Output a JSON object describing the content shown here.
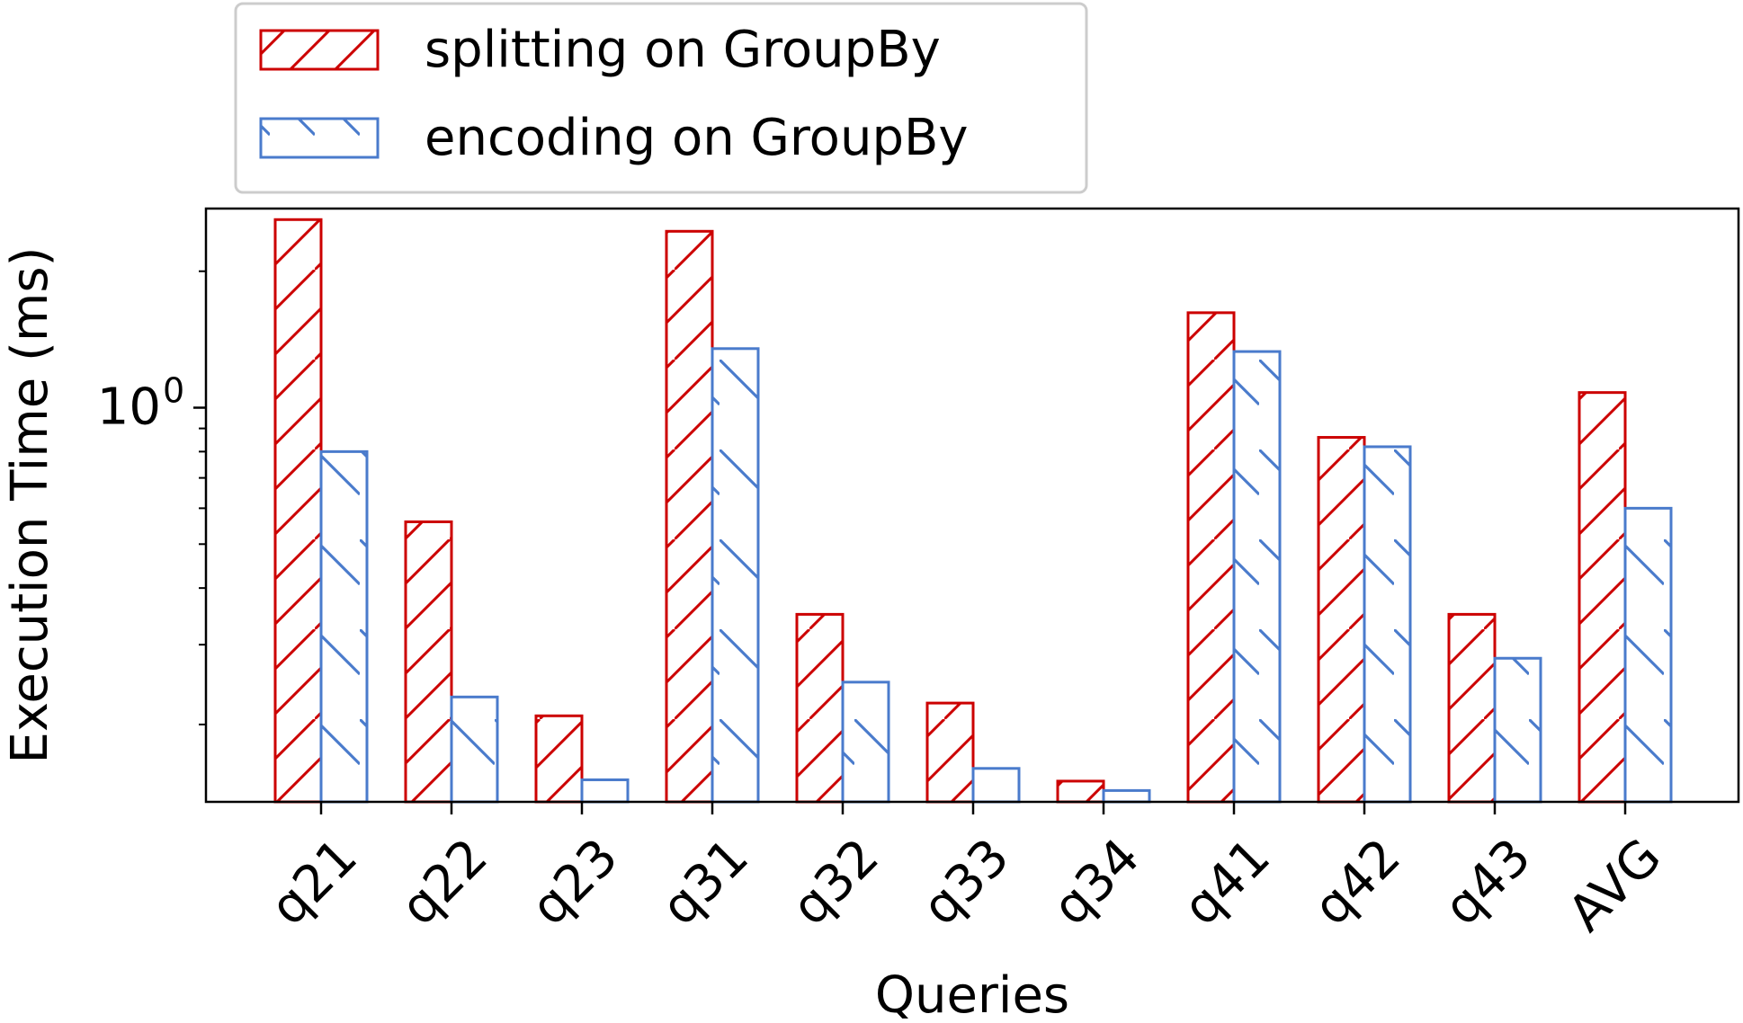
{
  "chart_data": {
    "type": "bar",
    "title": "",
    "xlabel": "Queries",
    "ylabel": "Execution Time (ms)",
    "yscale": "log",
    "ylim": [
      0.135,
      2.75
    ],
    "ytick_labels": [
      {
        "value": 1,
        "label": "10",
        "exponent": "0"
      }
    ],
    "categories": [
      "q21",
      "q22",
      "q23",
      "q31",
      "q32",
      "q33",
      "q34",
      "q41",
      "q42",
      "q43",
      "AVG"
    ],
    "series": [
      {
        "name": "splitting on GroupBy",
        "color": "#cc0000",
        "hatch": "/",
        "values": [
          2.6,
          0.56,
          0.209,
          2.45,
          0.35,
          0.223,
          0.15,
          1.62,
          0.86,
          0.35,
          1.08
        ]
      },
      {
        "name": "encoding on GroupBy",
        "color": "#4a7bcc",
        "hatch": "\\",
        "values": [
          0.8,
          0.23,
          0.151,
          1.35,
          0.248,
          0.16,
          0.143,
          1.33,
          0.82,
          0.28,
          0.6
        ]
      }
    ],
    "legend": {
      "position": "top-left",
      "outside": "above"
    },
    "grid": false
  }
}
